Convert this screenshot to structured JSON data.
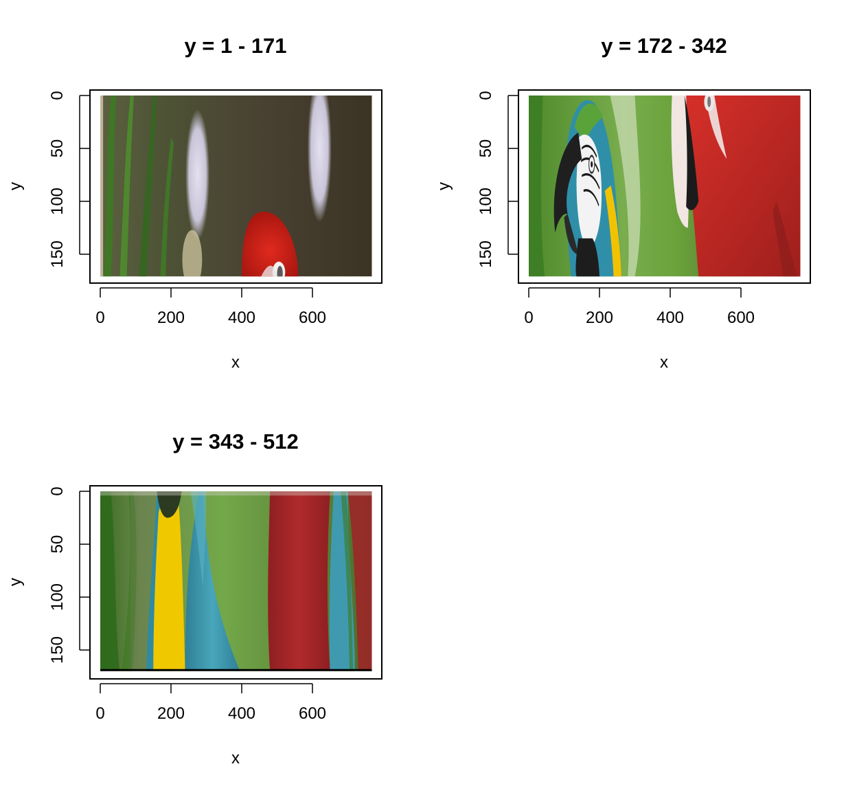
{
  "chart_data": [
    {
      "type": "image",
      "title": "y = 1 - 171",
      "xlabel": "x",
      "ylabel": "y",
      "xlim": [
        0,
        768
      ],
      "ylim": [
        180,
        0
      ],
      "x_ticks": [
        0,
        200,
        400,
        600
      ],
      "x_tick_labels": [
        "0",
        "200",
        "400",
        "600"
      ],
      "y_ticks": [
        0,
        50,
        100,
        150
      ],
      "y_tick_labels": [
        "0",
        "50",
        "100",
        "150"
      ],
      "image_extent": {
        "x": [
          0,
          768
        ],
        "y": [
          0,
          171
        ]
      },
      "colors": {
        "background": "#4a4333",
        "green": "#3f7a2a",
        "pale": "#d9d5e6",
        "red": "#c9211b"
      }
    },
    {
      "type": "image",
      "title": "y = 172 - 342",
      "xlabel": "x",
      "ylabel": "y",
      "xlim": [
        0,
        768
      ],
      "ylim": [
        180,
        0
      ],
      "x_ticks": [
        0,
        200,
        400,
        600
      ],
      "x_tick_labels": [
        "0",
        "200",
        "400",
        "600"
      ],
      "y_ticks": [
        0,
        50,
        100,
        150
      ],
      "y_tick_labels": [
        "0",
        "50",
        "100",
        "150"
      ],
      "image_extent": {
        "x": [
          0,
          768
        ],
        "y": [
          0,
          171
        ]
      },
      "colors": {
        "background": "#5d8a3a",
        "green": "#5aa33a",
        "red": "#c42a26",
        "yellow": "#f2c200",
        "black": "#1c1c1c",
        "white": "#f0f0f0"
      }
    },
    {
      "type": "image",
      "title": "y = 343 - 512",
      "xlabel": "x",
      "ylabel": "y",
      "xlim": [
        0,
        768
      ],
      "ylim": [
        180,
        0
      ],
      "x_ticks": [
        0,
        200,
        400,
        600
      ],
      "x_tick_labels": [
        "0",
        "200",
        "400",
        "600"
      ],
      "y_ticks": [
        0,
        50,
        100,
        150
      ],
      "y_tick_labels": [
        "0",
        "50",
        "100",
        "150"
      ],
      "image_extent": {
        "x": [
          0,
          768
        ],
        "y": [
          0,
          170
        ]
      },
      "colors": {
        "background": "#5a8a3a",
        "yellow": "#f0c800",
        "blue": "#3f9bb0",
        "red": "#a8262a",
        "dark": "#2f5a20"
      }
    }
  ]
}
